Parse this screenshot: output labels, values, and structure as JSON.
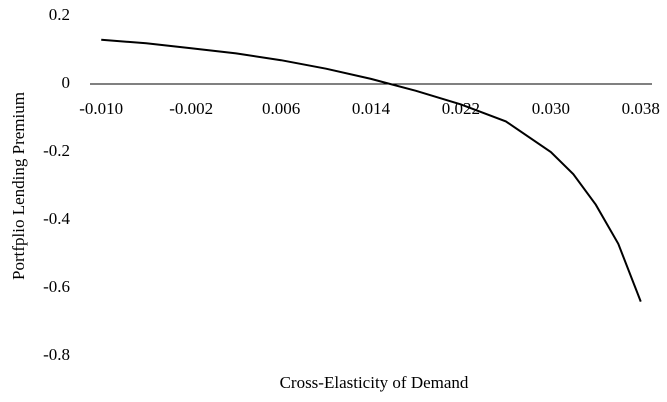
{
  "chart_data": {
    "type": "line",
    "x_label": "Cross-Elasticity of Demand",
    "y_label": "Portfplio Lending Premium",
    "x": [
      -0.01,
      -0.006,
      -0.002,
      0.002,
      0.006,
      0.01,
      0.014,
      0.018,
      0.022,
      0.026,
      0.03,
      0.032,
      0.034,
      0.036,
      0.038
    ],
    "series": [
      {
        "color": "#000000",
        "values": [
          0.13,
          0.12,
          0.105,
          0.09,
          0.07,
          0.045,
          0.015,
          -0.02,
          -0.06,
          -0.11,
          -0.2,
          -0.265,
          -0.355,
          -0.47,
          -0.64
        ]
      }
    ],
    "xlim": [
      -0.011,
      0.039
    ],
    "xticks": [
      {
        "value": -0.01,
        "label": "-0.010"
      },
      -0.002,
      0.006,
      0.014,
      0.022,
      {
        "value": 0.03,
        "label": "0.030"
      },
      0.038
    ],
    "ylim": [
      -0.8,
      0.2
    ],
    "yticks": [
      0.2,
      0,
      -0.2,
      -0.4,
      -0.6,
      -0.8
    ],
    "grid": false
  }
}
